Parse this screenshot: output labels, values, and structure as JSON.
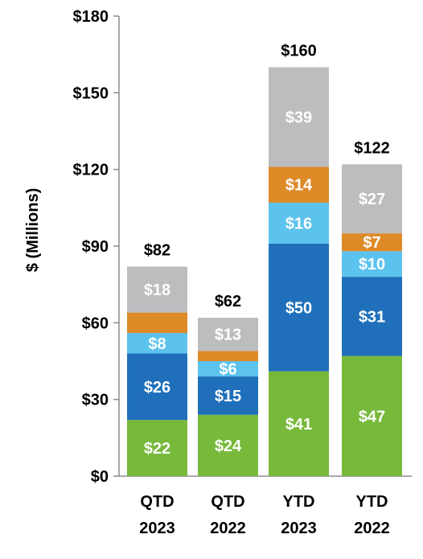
{
  "chart_data": {
    "type": "bar",
    "stacked": true,
    "title": "",
    "ylabel": "$ (Millions)",
    "xlabel": "",
    "ylim": [
      0,
      180
    ],
    "yticks": [
      0,
      30,
      60,
      90,
      120,
      150,
      180
    ],
    "ytick_labels": [
      "$0",
      "$30",
      "$60",
      "$90",
      "$120",
      "$150",
      "$180"
    ],
    "grid": false,
    "legend": "none",
    "categories": [
      [
        "QTD",
        "2023"
      ],
      [
        "QTD",
        "2022"
      ],
      [
        "YTD",
        "2023"
      ],
      [
        "YTD",
        "2022"
      ]
    ],
    "totals": [
      82,
      62,
      160,
      122
    ],
    "total_labels": [
      "$82",
      "$62",
      "$160",
      "$122"
    ],
    "series": [
      {
        "color": "#77b93a",
        "values": [
          22,
          24,
          41,
          47
        ],
        "labels": [
          "$22",
          "$24",
          "$41",
          "$47"
        ]
      },
      {
        "color": "#1f6fba",
        "values": [
          26,
          15,
          50,
          31
        ],
        "labels": [
          "$26",
          "$15",
          "$50",
          "$31"
        ]
      },
      {
        "color": "#5cc3ee",
        "values": [
          8,
          6,
          16,
          10
        ],
        "labels": [
          "$8",
          "$6",
          "$16",
          "$10"
        ]
      },
      {
        "color": "#dd8a27",
        "values": [
          8,
          4,
          14,
          7
        ],
        "labels": [
          "",
          "",
          "$14",
          "$7"
        ]
      },
      {
        "color": "#bcbdbf",
        "values": [
          18,
          13,
          39,
          27
        ],
        "labels": [
          "$18",
          "$13",
          "$39",
          "$27"
        ]
      }
    ]
  }
}
